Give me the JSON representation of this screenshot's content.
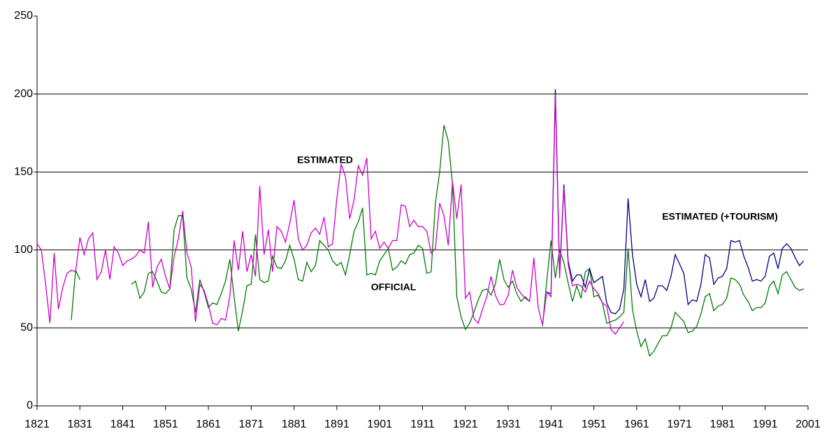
{
  "chart_data": {
    "type": "line",
    "x": [
      1821,
      1822,
      1823,
      1824,
      1825,
      1826,
      1827,
      1828,
      1829,
      1830,
      1831,
      1832,
      1833,
      1834,
      1835,
      1836,
      1837,
      1838,
      1839,
      1840,
      1841,
      1842,
      1843,
      1844,
      1845,
      1846,
      1847,
      1848,
      1849,
      1850,
      1851,
      1852,
      1853,
      1854,
      1855,
      1856,
      1857,
      1858,
      1859,
      1860,
      1861,
      1862,
      1863,
      1864,
      1865,
      1866,
      1867,
      1868,
      1869,
      1870,
      1871,
      1872,
      1873,
      1874,
      1875,
      1876,
      1877,
      1878,
      1879,
      1880,
      1881,
      1882,
      1883,
      1884,
      1885,
      1886,
      1887,
      1888,
      1889,
      1890,
      1891,
      1892,
      1893,
      1894,
      1895,
      1896,
      1897,
      1898,
      1899,
      1900,
      1901,
      1902,
      1903,
      1904,
      1905,
      1906,
      1907,
      1908,
      1909,
      1910,
      1911,
      1912,
      1913,
      1914,
      1915,
      1916,
      1917,
      1918,
      1919,
      1920,
      1921,
      1922,
      1923,
      1924,
      1925,
      1926,
      1927,
      1928,
      1929,
      1930,
      1931,
      1932,
      1933,
      1934,
      1935,
      1936,
      1937,
      1938,
      1939,
      1940,
      1941,
      1942,
      1943,
      1944,
      1945,
      1946,
      1947,
      1948,
      1949,
      1950,
      1951,
      1952,
      1953,
      1954,
      1955,
      1956,
      1957,
      1958,
      1959,
      1960,
      1961,
      1962,
      1963,
      1964,
      1965,
      1966,
      1967,
      1968,
      1969,
      1970,
      1971,
      1972,
      1973,
      1974,
      1975,
      1976,
      1977,
      1978,
      1979,
      1980,
      1981,
      1982,
      1983,
      1984,
      1985,
      1986,
      1987,
      1988,
      1989,
      1990,
      1991,
      1992,
      1993,
      1994,
      1995,
      1996,
      1997,
      1998,
      1999,
      2000,
      2001
    ],
    "series": [
      {
        "name": "OFFICIAL",
        "color": "#007a00",
        "values": [
          null,
          null,
          null,
          null,
          null,
          null,
          null,
          null,
          55,
          87,
          81,
          null,
          null,
          null,
          null,
          null,
          null,
          null,
          null,
          null,
          null,
          null,
          78,
          80,
          69,
          73,
          85,
          86,
          80,
          73,
          72,
          75,
          113,
          122,
          122,
          82,
          75,
          60,
          81,
          73,
          63,
          66,
          65,
          72,
          80,
          94,
          70,
          48,
          61,
          77,
          78,
          110,
          81,
          79,
          80,
          96,
          89,
          88,
          93,
          103,
          94,
          81,
          80,
          92,
          86,
          90,
          106,
          103,
          100,
          93,
          90,
          92,
          84,
          97,
          112,
          118,
          127,
          84,
          85,
          84,
          93,
          97,
          101,
          87,
          89,
          93,
          91,
          97,
          98,
          103,
          101,
          85,
          86,
          130,
          150,
          180,
          170,
          142,
          70,
          57,
          49,
          53,
          60,
          68,
          74,
          75,
          71,
          78,
          94,
          81,
          76,
          80,
          72,
          67,
          70,
          67,
          null,
          null,
          51,
          80,
          106,
          82,
          100,
          92,
          79,
          67,
          77,
          69,
          86,
          88,
          70,
          71,
          66,
          53,
          54,
          55,
          57,
          60,
          101,
          62,
          48,
          38,
          43,
          32,
          35,
          40,
          45,
          45,
          50,
          60,
          57,
          54,
          47,
          48,
          51,
          59,
          70,
          72,
          61,
          64,
          65,
          69,
          82,
          81,
          78,
          71,
          67,
          61,
          63,
          63,
          66,
          77,
          80,
          72,
          84,
          86,
          81,
          76,
          74,
          75,
          null
        ]
      },
      {
        "name": "ESTIMATED (+TOURISM)",
        "color": "#000080",
        "values": [
          null,
          null,
          null,
          null,
          null,
          null,
          null,
          null,
          null,
          null,
          null,
          null,
          null,
          null,
          null,
          null,
          null,
          null,
          null,
          null,
          null,
          null,
          null,
          null,
          null,
          null,
          null,
          null,
          null,
          null,
          null,
          null,
          null,
          null,
          null,
          null,
          null,
          null,
          null,
          null,
          null,
          null,
          null,
          null,
          null,
          null,
          null,
          null,
          null,
          null,
          null,
          null,
          null,
          null,
          null,
          null,
          null,
          null,
          null,
          null,
          null,
          null,
          null,
          null,
          null,
          null,
          null,
          null,
          null,
          null,
          null,
          null,
          null,
          null,
          null,
          null,
          null,
          null,
          null,
          null,
          null,
          null,
          null,
          null,
          null,
          null,
          null,
          null,
          null,
          null,
          null,
          null,
          null,
          null,
          null,
          null,
          null,
          null,
          null,
          null,
          null,
          null,
          null,
          null,
          null,
          null,
          null,
          null,
          null,
          null,
          null,
          null,
          null,
          null,
          null,
          null,
          null,
          null,
          null,
          73,
          72,
          203,
          84,
          142,
          93,
          80,
          84,
          84,
          76,
          88,
          79,
          81,
          83,
          66,
          60,
          59,
          62,
          75,
          133,
          97,
          78,
          70,
          81,
          67,
          69,
          77,
          77,
          74,
          83,
          97,
          91,
          85,
          65,
          68,
          67,
          78,
          97,
          95,
          78,
          82,
          83,
          88,
          106,
          105,
          106,
          96,
          89,
          80,
          81,
          80,
          83,
          96,
          98,
          88,
          101,
          104,
          101,
          95,
          90,
          93,
          null
        ]
      },
      {
        "name": "ESTIMATED",
        "color": "#cc00cc",
        "values": [
          104,
          100,
          78,
          53,
          98,
          62,
          76,
          85,
          87,
          86,
          108,
          97,
          107,
          111,
          81,
          86,
          100,
          81,
          102,
          98,
          90,
          93,
          94,
          96,
          100,
          98,
          118,
          76,
          89,
          94,
          83,
          75,
          96,
          107,
          125,
          98,
          89,
          54,
          78,
          74,
          65,
          53,
          52,
          56,
          55,
          70,
          106,
          87,
          112,
          86,
          97,
          83,
          141,
          97,
          113,
          86,
          115,
          112,
          105,
          117,
          132,
          107,
          100,
          103,
          111,
          114,
          110,
          121,
          102,
          104,
          133,
          155,
          147,
          120,
          132,
          154,
          148,
          159,
          107,
          112,
          101,
          105,
          101,
          106,
          106,
          129,
          128,
          115,
          119,
          115,
          115,
          112,
          98,
          101,
          130,
          122,
          103,
          144,
          120,
          142,
          69,
          73,
          56,
          53,
          62,
          70,
          83,
          71,
          65,
          65,
          71,
          87,
          76,
          72,
          69,
          67,
          95,
          63,
          52,
          73,
          70,
          200,
          82,
          140,
          91,
          77,
          78,
          77,
          73,
          80,
          75,
          72,
          66,
          64,
          49,
          46,
          50,
          54,
          null,
          null,
          null,
          null,
          null,
          null,
          null,
          null,
          null,
          null,
          null,
          null,
          null,
          null,
          null,
          null,
          null,
          null,
          null,
          null,
          null,
          null,
          null,
          null,
          null,
          null,
          null,
          null,
          null,
          null,
          null,
          null,
          null,
          null,
          null,
          null,
          null,
          null,
          null,
          null,
          null,
          null,
          null
        ]
      }
    ],
    "xlim": [
      1821,
      2001
    ],
    "xticks": [
      1821,
      1831,
      1841,
      1851,
      1861,
      1871,
      1881,
      1891,
      1901,
      1911,
      1921,
      1931,
      1941,
      1951,
      1961,
      1971,
      1981,
      1991,
      2001
    ],
    "ylim": [
      0,
      250
    ],
    "yticks": [
      0,
      50,
      100,
      150,
      200,
      250
    ],
    "grid": true
  }
}
